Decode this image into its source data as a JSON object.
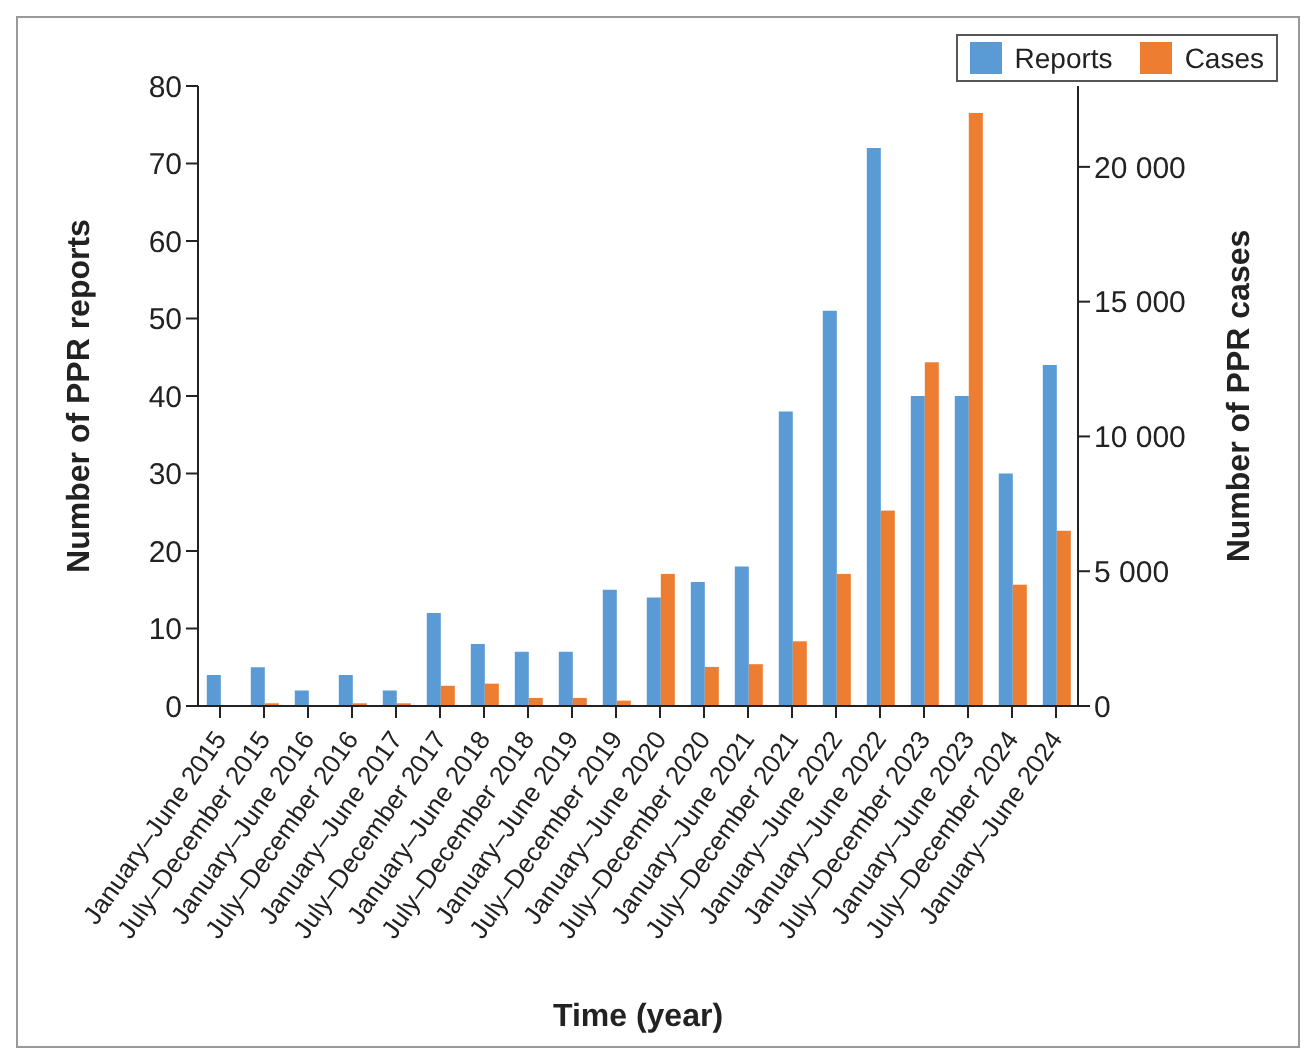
{
  "chart_data": {
    "type": "bar",
    "xlabel": "Time (year)",
    "ylabel": "Number of PPR reports",
    "y2label": "Number of PPR cases",
    "categories": [
      "January–June 2015",
      "July–December 2015",
      "January–June 2016",
      "July–December 2016",
      "January–June 2017",
      "July–December 2017",
      "January–June 2018",
      "July–December 2018",
      "January–June 2019",
      "July–December 2019",
      "January–June 2020",
      "July–December 2020",
      "January–June 2021",
      "July–December 2021",
      "January–June 2022",
      "January–June 2022",
      "July–December 2023",
      "January–June 2023",
      "July–December 2024",
      "January–June 2024"
    ],
    "series": [
      {
        "name": "Reports",
        "color": "#5b9bd5",
        "values": [
          4,
          5,
          2,
          4,
          2,
          12,
          8,
          7,
          7,
          15,
          14,
          16,
          18,
          38,
          51,
          72,
          40,
          40,
          30,
          44
        ]
      },
      {
        "name": "Cases",
        "color": "#ed7d31",
        "axis": "y2",
        "values": [
          0,
          100,
          0,
          100,
          100,
          750,
          830,
          300,
          300,
          200,
          4900,
          1450,
          1550,
          2400,
          4900,
          7250,
          12750,
          22000,
          4500,
          6500
        ]
      }
    ],
    "ylim": [
      0,
      80
    ],
    "yticks": [
      0,
      10,
      20,
      30,
      40,
      50,
      60,
      70,
      80
    ],
    "y2lim": [
      0,
      23000
    ],
    "y2ticks": [
      0,
      {
        "value": 5000,
        "label": "5 000"
      },
      {
        "value": 10000,
        "label": "10 000"
      },
      {
        "value": 15000,
        "label": "15 000"
      },
      {
        "value": 20000,
        "label": "20 000"
      }
    ],
    "grid": false,
    "legend": "top right"
  }
}
